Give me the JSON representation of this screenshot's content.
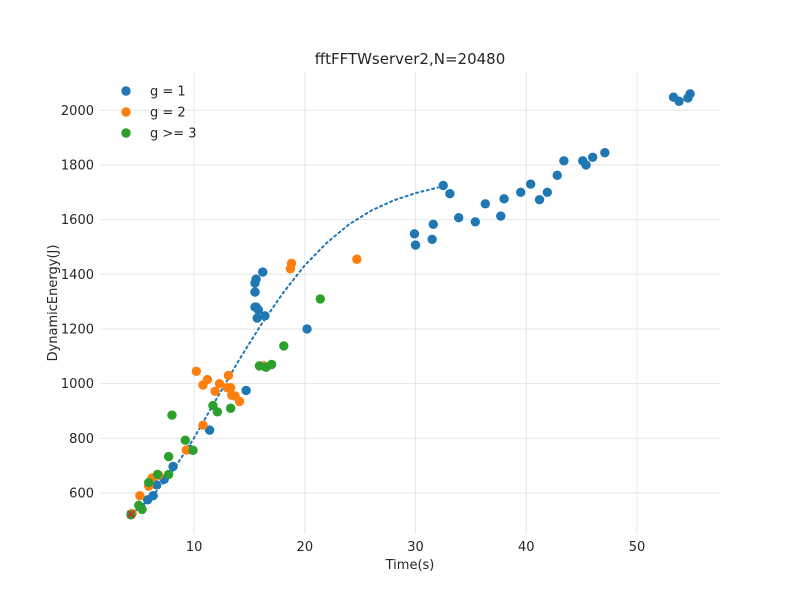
{
  "chart_data": {
    "type": "scatter",
    "title": "fftFFTWserver2,N=20480",
    "xlabel": "Time(s)",
    "ylabel": "DynamicEnergy(J)",
    "xlim": [
      1.5,
      57.5
    ],
    "ylim": [
      450,
      2140
    ],
    "xticks": [
      10,
      20,
      30,
      40,
      50
    ],
    "yticks": [
      600,
      800,
      1000,
      1200,
      1400,
      1600,
      1800,
      2000
    ],
    "grid": true,
    "legend_position": "top-left",
    "series": [
      {
        "name": "g = 1",
        "color": "#1f77b4",
        "points": [
          [
            4.3,
            522
          ],
          [
            5.2,
            548
          ],
          [
            5.8,
            575
          ],
          [
            6.3,
            590
          ],
          [
            6.6,
            630
          ],
          [
            7.3,
            650
          ],
          [
            8.1,
            697
          ],
          [
            9.6,
            760
          ],
          [
            11.4,
            830
          ],
          [
            14.7,
            975
          ],
          [
            20.2,
            1200
          ],
          [
            15.5,
            1280
          ],
          [
            15.6,
            1280
          ],
          [
            15.8,
            1270
          ],
          [
            16.4,
            1248
          ],
          [
            15.7,
            1240
          ],
          [
            15.5,
            1335
          ],
          [
            15.5,
            1368
          ],
          [
            15.6,
            1382
          ],
          [
            16.2,
            1408
          ],
          [
            29.9,
            1548
          ],
          [
            30.0,
            1507
          ],
          [
            31.5,
            1528
          ],
          [
            31.6,
            1583
          ],
          [
            32.5,
            1725
          ],
          [
            33.1,
            1695
          ],
          [
            33.9,
            1607
          ],
          [
            35.4,
            1592
          ],
          [
            36.3,
            1658
          ],
          [
            37.7,
            1613
          ],
          [
            38.0,
            1676
          ],
          [
            39.5,
            1700
          ],
          [
            40.4,
            1730
          ],
          [
            41.2,
            1673
          ],
          [
            41.9,
            1700
          ],
          [
            42.8,
            1762
          ],
          [
            43.4,
            1815
          ],
          [
            45.1,
            1815
          ],
          [
            45.4,
            1800
          ],
          [
            46.0,
            1828
          ],
          [
            47.1,
            1845
          ],
          [
            53.3,
            2048
          ],
          [
            53.8,
            2033
          ],
          [
            54.6,
            2045
          ],
          [
            54.8,
            2060
          ]
        ]
      },
      {
        "name": "g = 2",
        "color": "#ff7f0e",
        "points": [
          [
            4.4,
            525
          ],
          [
            5.1,
            590
          ],
          [
            5.9,
            625
          ],
          [
            6.2,
            655
          ],
          [
            6.8,
            665
          ],
          [
            9.3,
            757
          ],
          [
            10.2,
            1045
          ],
          [
            10.8,
            995
          ],
          [
            11.2,
            1015
          ],
          [
            11.9,
            972
          ],
          [
            12.3,
            1000
          ],
          [
            10.8,
            848
          ],
          [
            13.0,
            985
          ],
          [
            13.1,
            1030
          ],
          [
            13.3,
            985
          ],
          [
            13.4,
            958
          ],
          [
            13.7,
            955
          ],
          [
            14.1,
            935
          ],
          [
            16.3,
            1065
          ],
          [
            18.7,
            1420
          ],
          [
            18.8,
            1440
          ],
          [
            24.7,
            1455
          ]
        ]
      },
      {
        "name": "g >= 3",
        "color": "#2ca02c",
        "points": [
          [
            4.3,
            520
          ],
          [
            5.0,
            555
          ],
          [
            5.3,
            540
          ],
          [
            5.9,
            638
          ],
          [
            6.7,
            668
          ],
          [
            7.7,
            733
          ],
          [
            7.7,
            668
          ],
          [
            8.0,
            885
          ],
          [
            9.2,
            793
          ],
          [
            9.9,
            756
          ],
          [
            11.7,
            920
          ],
          [
            12.1,
            897
          ],
          [
            13.3,
            910
          ],
          [
            15.9,
            1065
          ],
          [
            16.5,
            1060
          ],
          [
            17.0,
            1070
          ],
          [
            18.1,
            1138
          ],
          [
            21.4,
            1310
          ]
        ]
      }
    ],
    "trend_line": {
      "color": "#1f77b4",
      "style": "dotted",
      "points": [
        [
          4.3,
          522
        ],
        [
          6,
          577
        ],
        [
          8,
          676
        ],
        [
          10,
          802
        ],
        [
          12,
          943
        ],
        [
          14,
          1083
        ],
        [
          16,
          1212
        ],
        [
          18,
          1330
        ],
        [
          20,
          1433
        ],
        [
          22,
          1516
        ],
        [
          24,
          1583
        ],
        [
          26,
          1633
        ],
        [
          28,
          1670
        ],
        [
          30,
          1697
        ],
        [
          32,
          1717
        ]
      ]
    },
    "markers": [
      {
        "x": 4.3,
        "y": 522,
        "symbol": "x",
        "color": "#d62728"
      }
    ]
  }
}
